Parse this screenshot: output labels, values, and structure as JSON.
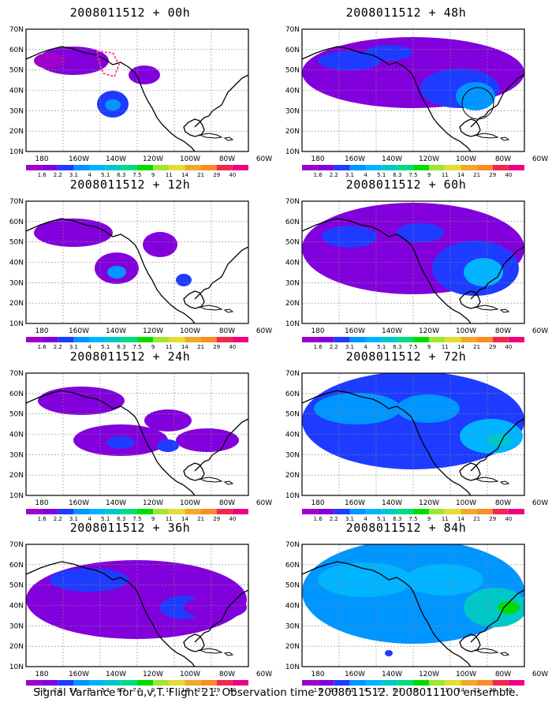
{
  "panels": [
    {
      "title": "2008011512 + 00h",
      "lead": 0
    },
    {
      "title": "2008011512 + 48h",
      "lead": 48
    },
    {
      "title": "2008011512 + 12h",
      "lead": 12
    },
    {
      "title": "2008011512 + 60h",
      "lead": 60
    },
    {
      "title": "2008011512 + 24h",
      "lead": 24
    },
    {
      "title": "2008011512 + 72h",
      "lead": 72
    },
    {
      "title": "2008011512 + 36h",
      "lead": 36
    },
    {
      "title": "2008011512 + 84h",
      "lead": 84
    }
  ],
  "axes": {
    "lat_labels": [
      "70N",
      "60N",
      "50N",
      "40N",
      "30N",
      "20N",
      "10N"
    ],
    "lon_labels": [
      "180",
      "160W",
      "140W",
      "120W",
      "100W",
      "80W",
      "60W"
    ]
  },
  "colorbar": {
    "labels": [
      "1.6",
      "2.2",
      "3.1",
      "4",
      "5.1",
      "6.3",
      "7.5",
      "9",
      "11",
      "14",
      "21",
      "29",
      "40"
    ],
    "colors": [
      "#a000c8",
      "#8200dc",
      "#1e3cff",
      "#0096ff",
      "#00b4ff",
      "#00c8c8",
      "#00dc82",
      "#00dc00",
      "#a0e632",
      "#e6dc32",
      "#f0aa28",
      "#fa8c28",
      "#f02850",
      "#f00082"
    ]
  },
  "footer": "Signal Variance for u,v,T. Flight 21. Observation time 2008011512. 2008011100 ensemble."
}
